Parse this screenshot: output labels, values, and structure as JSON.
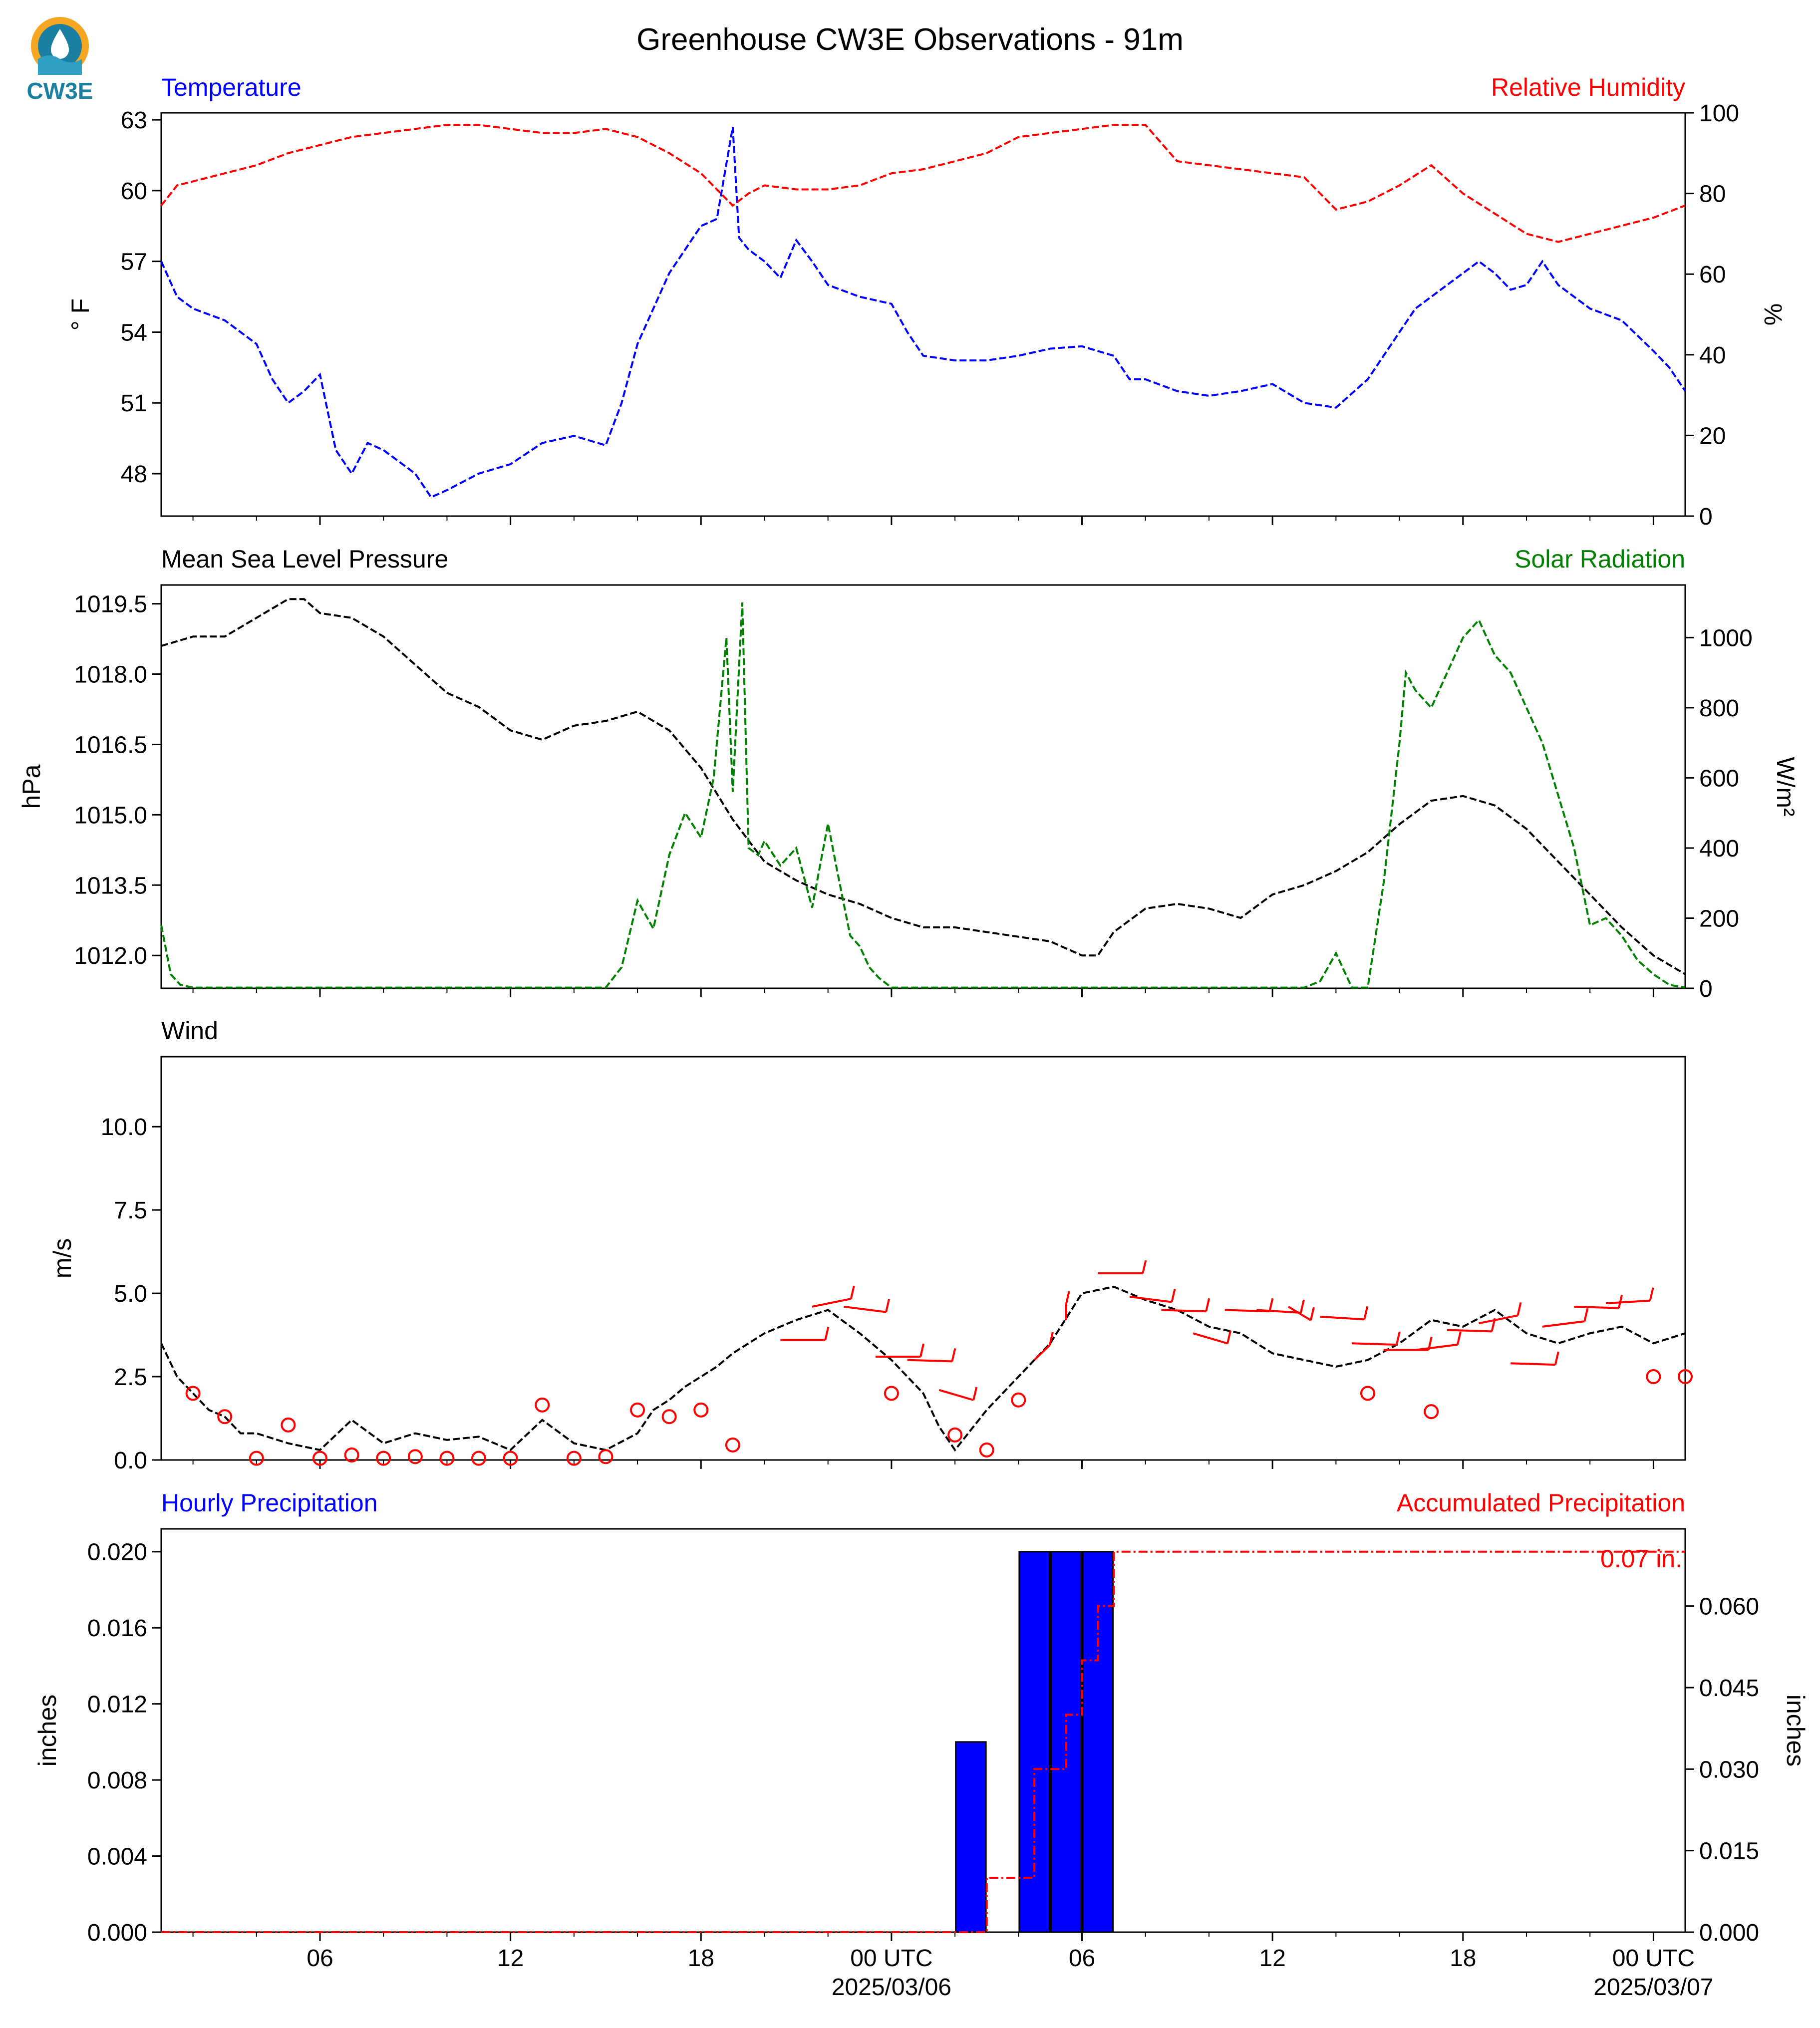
{
  "figure": {
    "title": "Greenhouse CW3E Observations - 91m",
    "logo_text": "CW3E",
    "colors": {
      "blue": "#0000ff",
      "red": "#ff0000",
      "green": "#008000",
      "black": "#000000",
      "logo_orange": "#f5a623",
      "logo_teal": "#1a7fa0"
    }
  },
  "x_axis": {
    "tick_hours": [
      6,
      12,
      18,
      24,
      30,
      36,
      42,
      48
    ],
    "tick_labels": [
      "06",
      "12",
      "18",
      "00 UTC",
      "06",
      "12",
      "18",
      "00 UTC"
    ],
    "date_labels": [
      {
        "hour": 24,
        "text": "2025/03/06"
      },
      {
        "hour": 48,
        "text": "2025/03/07"
      }
    ],
    "range_hours": [
      1,
      49
    ]
  },
  "chart_data": [
    {
      "type": "line",
      "name": "temperature-humidity",
      "left_title": "Temperature",
      "right_title": "Relative Humidity",
      "ylabel_left": "° F",
      "ylabel_right": "%",
      "ylim_left": [
        46.2,
        63.3
      ],
      "ylim_right": [
        0,
        100
      ],
      "yticks_left": [
        48,
        51,
        54,
        57,
        60,
        63
      ],
      "yticks_right": [
        0,
        20,
        40,
        60,
        80,
        100
      ],
      "series": [
        {
          "axis": "left",
          "color": "#0000ff",
          "x": [
            1,
            1.5,
            2,
            3,
            3.5,
            4,
            4.5,
            5,
            5.5,
            6,
            6.5,
            7,
            7.5,
            8,
            9,
            9.5,
            10,
            11,
            12,
            13,
            14,
            15,
            15.5,
            16,
            16.5,
            17,
            18,
            18.5,
            19,
            19.2,
            19.5,
            20,
            20.5,
            21,
            21.5,
            22,
            23,
            24,
            24.5,
            25,
            26,
            27,
            28,
            29,
            30,
            31,
            31.5,
            32,
            33,
            34,
            35,
            36,
            37,
            38,
            39,
            40,
            40.5,
            41,
            41.5,
            42,
            42.5,
            43,
            43.5,
            44,
            44.5,
            45,
            46,
            47,
            48,
            48.5,
            49
          ],
          "y": [
            57,
            55.5,
            55,
            54.5,
            54,
            53.5,
            52,
            51,
            51.5,
            52.2,
            49,
            48,
            49.3,
            49,
            48,
            47,
            47.3,
            48,
            48.4,
            49.3,
            49.6,
            49.2,
            51,
            53.5,
            55,
            56.5,
            58.5,
            58.8,
            62.7,
            58,
            57.5,
            57,
            56.3,
            57.9,
            57,
            56,
            55.5,
            55.2,
            54,
            53,
            52.8,
            52.8,
            53,
            53.3,
            53.4,
            53,
            52,
            52,
            51.5,
            51.3,
            51.5,
            51.8,
            51,
            50.8,
            52,
            54,
            55,
            55.5,
            56,
            56.5,
            57,
            56.5,
            55.8,
            56,
            57,
            56,
            55,
            54.5,
            53.2,
            52.5,
            51.5
          ]
        },
        {
          "axis": "right",
          "color": "#ff0000",
          "x": [
            1,
            1.5,
            2,
            3,
            4,
            5,
            6,
            7,
            8,
            9,
            10,
            11,
            12,
            13,
            14,
            15,
            16,
            17,
            18,
            19,
            19.5,
            20,
            21,
            22,
            23,
            24,
            25,
            26,
            27,
            28,
            29,
            30,
            31,
            32,
            33,
            34,
            35,
            36,
            37,
            38,
            39,
            40,
            41,
            42,
            43,
            44,
            45,
            46,
            47,
            48,
            49
          ],
          "y": [
            77,
            82,
            83,
            85,
            87,
            90,
            92,
            94,
            95,
            96,
            97,
            97,
            96,
            95,
            95,
            96,
            94,
            90,
            85,
            77,
            80,
            82,
            81,
            81,
            82,
            85,
            86,
            88,
            90,
            94,
            95,
            96,
            97,
            97,
            88,
            87,
            86,
            85,
            84,
            76,
            78,
            82,
            87,
            80,
            75,
            70,
            68,
            70,
            72,
            74,
            77
          ]
        }
      ]
    },
    {
      "type": "line",
      "name": "pressure-solar",
      "left_title": "Mean Sea Level Pressure",
      "right_title": "Solar Radiation",
      "ylabel_left": "hPa",
      "ylabel_right": "W/m²",
      "ylim_left": [
        1011.3,
        1019.9
      ],
      "ylim_right": [
        0,
        1150
      ],
      "yticks_left": [
        1012.0,
        1013.5,
        1015.0,
        1016.5,
        1018.0,
        1019.5
      ],
      "ytick_labels_left": [
        "1012.0",
        "1013.5",
        "1015.0",
        "1016.5",
        "1018.0",
        "1019.5"
      ],
      "yticks_right": [
        0,
        200,
        400,
        600,
        800,
        1000
      ],
      "series": [
        {
          "axis": "left",
          "color": "#000000",
          "x": [
            1,
            2,
            3,
            4,
            5,
            5.5,
            6,
            7,
            8,
            9,
            10,
            11,
            12,
            13,
            14,
            15,
            16,
            17,
            18,
            19,
            20,
            21,
            22,
            23,
            24,
            25,
            26,
            27,
            28,
            29,
            30,
            30.5,
            31,
            32,
            33,
            34,
            35,
            36,
            37,
            38,
            39,
            40,
            41,
            42,
            43,
            44,
            45,
            46,
            47,
            48,
            49
          ],
          "y": [
            1018.6,
            1018.8,
            1018.8,
            1019.2,
            1019.6,
            1019.6,
            1019.3,
            1019.2,
            1018.8,
            1018.2,
            1017.6,
            1017.3,
            1016.8,
            1016.6,
            1016.9,
            1017.0,
            1017.2,
            1016.8,
            1016.0,
            1014.9,
            1014.0,
            1013.6,
            1013.3,
            1013.1,
            1012.8,
            1012.6,
            1012.6,
            1012.5,
            1012.4,
            1012.3,
            1012.0,
            1012.0,
            1012.5,
            1013.0,
            1013.1,
            1013.0,
            1012.8,
            1013.3,
            1013.5,
            1013.8,
            1014.2,
            1014.8,
            1015.3,
            1015.4,
            1015.2,
            1014.7,
            1014.0,
            1013.3,
            1012.6,
            1012.0,
            1011.6
          ]
        },
        {
          "axis": "right",
          "color": "#008000",
          "x": [
            1,
            1.3,
            1.6,
            2,
            3,
            4,
            5,
            6,
            7,
            8,
            9,
            10,
            11,
            12,
            13,
            14,
            15,
            15.5,
            16,
            16.5,
            17,
            17.5,
            18,
            18.4,
            18.8,
            19,
            19.3,
            19.5,
            19.8,
            20,
            20.5,
            21,
            21.5,
            22,
            22.3,
            22.7,
            23,
            23.3,
            23.6,
            24,
            25,
            26,
            27,
            28,
            29,
            30,
            31,
            32,
            33,
            34,
            35,
            36,
            37,
            37.5,
            38,
            38.5,
            39,
            39.5,
            40,
            40.2,
            40.5,
            41,
            41.5,
            42,
            42.5,
            43,
            43.5,
            44,
            44.5,
            45,
            45.5,
            46,
            46.5,
            47,
            47.5,
            48,
            48.5,
            49
          ],
          "y": [
            180,
            40,
            10,
            2,
            2,
            2,
            2,
            2,
            2,
            2,
            2,
            2,
            2,
            2,
            2,
            2,
            2,
            60,
            250,
            170,
            380,
            500,
            430,
            600,
            1000,
            560,
            1100,
            400,
            380,
            420,
            350,
            400,
            230,
            470,
            330,
            150,
            120,
            60,
            30,
            2,
            2,
            2,
            2,
            2,
            2,
            2,
            2,
            2,
            2,
            2,
            2,
            2,
            2,
            20,
            100,
            2,
            2,
            300,
            700,
            900,
            850,
            800,
            900,
            1000,
            1050,
            950,
            900,
            800,
            700,
            550,
            400,
            180,
            200,
            150,
            80,
            40,
            10,
            2
          ]
        }
      ]
    },
    {
      "type": "line",
      "name": "wind",
      "left_title": "Wind",
      "ylabel_left": "m/s",
      "ylim_left": [
        0,
        12.1
      ],
      "yticks_left": [
        0.0,
        2.5,
        5.0,
        7.5,
        10.0
      ],
      "ytick_labels_left": [
        "0.0",
        "2.5",
        "5.0",
        "7.5",
        "10.0"
      ],
      "series": [
        {
          "axis": "left",
          "color": "#000000",
          "x": [
            1,
            1.5,
            2,
            2.5,
            3,
            3.5,
            4,
            5,
            6,
            7,
            8,
            9,
            10,
            11,
            12,
            13,
            14,
            15,
            16,
            16.5,
            17,
            17.5,
            18,
            18.5,
            19,
            19.5,
            20,
            21,
            22,
            23,
            24,
            25,
            25.5,
            26,
            27,
            28,
            29,
            30,
            31,
            32,
            33,
            34,
            35,
            36,
            37,
            38,
            39,
            40,
            41,
            42,
            43,
            44,
            45,
            46,
            47,
            48,
            49
          ],
          "y": [
            3.5,
            2.5,
            2.0,
            1.5,
            1.3,
            0.8,
            0.8,
            0.5,
            0.3,
            1.2,
            0.5,
            0.8,
            0.6,
            0.7,
            0.3,
            1.2,
            0.5,
            0.3,
            0.8,
            1.5,
            1.8,
            2.2,
            2.5,
            2.8,
            3.2,
            3.5,
            3.8,
            4.2,
            4.5,
            3.8,
            3.0,
            2.0,
            1.0,
            0.3,
            1.5,
            2.5,
            3.5,
            5.0,
            5.2,
            4.8,
            4.5,
            4.0,
            3.8,
            3.2,
            3.0,
            2.8,
            3.0,
            3.5,
            4.2,
            4.0,
            4.5,
            3.8,
            3.5,
            3.8,
            4.0,
            3.5,
            3.8
          ]
        }
      ],
      "calm_circles": [
        {
          "x": 2,
          "y": 2.0
        },
        {
          "x": 3,
          "y": 1.3
        },
        {
          "x": 4,
          "y": 0.05
        },
        {
          "x": 5,
          "y": 1.05
        },
        {
          "x": 6,
          "y": 0.05
        },
        {
          "x": 7,
          "y": 0.15
        },
        {
          "x": 8,
          "y": 0.05
        },
        {
          "x": 9,
          "y": 0.1
        },
        {
          "x": 10,
          "y": 0.05
        },
        {
          "x": 11,
          "y": 0.05
        },
        {
          "x": 12,
          "y": 0.05
        },
        {
          "x": 13,
          "y": 1.65
        },
        {
          "x": 14,
          "y": 0.05
        },
        {
          "x": 15,
          "y": 0.1
        },
        {
          "x": 16,
          "y": 1.5
        },
        {
          "x": 17,
          "y": 1.3
        },
        {
          "x": 18,
          "y": 1.5
        },
        {
          "x": 19,
          "y": 0.45
        },
        {
          "x": 24,
          "y": 2.0
        },
        {
          "x": 26,
          "y": 0.75
        },
        {
          "x": 27,
          "y": 0.3
        },
        {
          "x": 28,
          "y": 1.8
        },
        {
          "x": 39,
          "y": 2.0
        },
        {
          "x": 41,
          "y": 1.45
        },
        {
          "x": 48,
          "y": 2.5
        },
        {
          "x": 49,
          "y": 2.5
        }
      ],
      "barbs": [
        {
          "x": 20.5,
          "y": 3.6,
          "dir": 90
        },
        {
          "x": 21.5,
          "y": 4.6,
          "dir": 60
        },
        {
          "x": 22.5,
          "y": 4.6,
          "dir": 110
        },
        {
          "x": 23.5,
          "y": 3.1,
          "dir": 90
        },
        {
          "x": 24.5,
          "y": 3.0,
          "dir": 95
        },
        {
          "x": 25.5,
          "y": 2.1,
          "dir": 130
        },
        {
          "x": 28.5,
          "y": 3.0,
          "dir": 20
        },
        {
          "x": 29.5,
          "y": 4.2,
          "dir": 0
        },
        {
          "x": 30.5,
          "y": 5.6,
          "dir": 90
        },
        {
          "x": 31.5,
          "y": 4.9,
          "dir": 110
        },
        {
          "x": 32.5,
          "y": 4.5,
          "dir": 95
        },
        {
          "x": 33.5,
          "y": 3.8,
          "dir": 130
        },
        {
          "x": 34.5,
          "y": 4.5,
          "dir": 95
        },
        {
          "x": 35.5,
          "y": 4.5,
          "dir": 100
        },
        {
          "x": 36.5,
          "y": 4.6,
          "dir": 150
        },
        {
          "x": 37.5,
          "y": 4.3,
          "dir": 100
        },
        {
          "x": 38.5,
          "y": 3.5,
          "dir": 95
        },
        {
          "x": 39.5,
          "y": 3.3,
          "dir": 90
        },
        {
          "x": 40.5,
          "y": 3.3,
          "dir": 70
        },
        {
          "x": 41.5,
          "y": 3.9,
          "dir": 95
        },
        {
          "x": 42.5,
          "y": 4.1,
          "dir": 60
        },
        {
          "x": 43.5,
          "y": 2.9,
          "dir": 95
        },
        {
          "x": 44.5,
          "y": 4.0,
          "dir": 70
        },
        {
          "x": 45.5,
          "y": 4.6,
          "dir": 95
        },
        {
          "x": 46.5,
          "y": 4.7,
          "dir": 80
        }
      ]
    },
    {
      "type": "bar",
      "name": "precipitation",
      "left_title": "Hourly Precipitation",
      "right_title": "Accumulated Precipitation",
      "ylabel_left": "inches",
      "ylabel_right": "inches",
      "ylim_left": [
        0,
        0.0212
      ],
      "ylim_right": [
        0,
        0.0742
      ],
      "yticks_left": [
        0.0,
        0.004,
        0.008,
        0.012,
        0.016,
        0.02
      ],
      "ytick_labels_left": [
        "0.000",
        "0.004",
        "0.008",
        "0.012",
        "0.016",
        "0.020"
      ],
      "yticks_right": [
        0.0,
        0.015,
        0.03,
        0.045,
        0.06
      ],
      "ytick_labels_right": [
        "0.000",
        "0.015",
        "0.030",
        "0.045",
        "0.060"
      ],
      "bars": [
        {
          "x": 26.5,
          "value": 0.01
        },
        {
          "x": 28.5,
          "value": 0.02
        },
        {
          "x": 29.5,
          "value": 0.02
        },
        {
          "x": 30.5,
          "value": 0.02
        }
      ],
      "accumulated": {
        "x": [
          1,
          27,
          27,
          28.5,
          28.5,
          29.5,
          29.5,
          30.0,
          30.0,
          30.5,
          30.5,
          31,
          31,
          49
        ],
        "y": [
          0,
          0,
          0.01,
          0.01,
          0.03,
          0.03,
          0.04,
          0.04,
          0.05,
          0.05,
          0.06,
          0.06,
          0.07,
          0.07
        ]
      },
      "annotation": "0.07 in."
    }
  ]
}
